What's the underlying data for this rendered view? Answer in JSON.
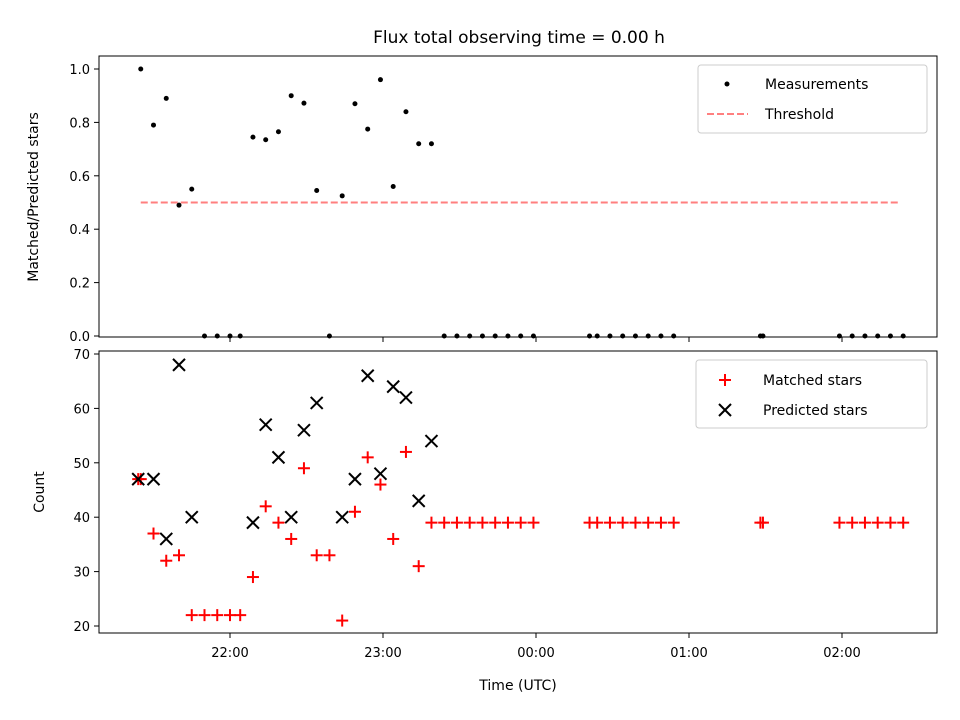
{
  "title": "Flux total observing time = 0.00 h",
  "chart_data": [
    {
      "type": "scatter",
      "ylabel": "Matched/Predicted stars",
      "xlabel": "",
      "ylim": [
        0,
        1.05
      ],
      "y_ticks": [
        "0.0",
        "0.2",
        "0.4",
        "0.6",
        "0.8",
        "1.0"
      ],
      "x_tick_labels_visible": false,
      "legend": {
        "placement": "upper right",
        "items": [
          "Measurements",
          "Threshold"
        ]
      },
      "colors": {
        "measurements": "#000000",
        "threshold": "#ff7f7f"
      },
      "threshold": {
        "name": "Threshold",
        "value": 0.5,
        "x_start": "21:25",
        "x_end": "02:23"
      },
      "series": [
        {
          "name": "Measurements",
          "points": [
            [
              "21:25",
              1.0
            ],
            [
              "21:30",
              0.79
            ],
            [
              "21:35",
              0.89
            ],
            [
              "21:40",
              0.49
            ],
            [
              "21:45",
              0.55
            ],
            [
              "21:50",
              0.0
            ],
            [
              "21:55",
              0.0
            ],
            [
              "22:00",
              0.0
            ],
            [
              "22:04",
              0.0
            ],
            [
              "22:09",
              0.745
            ],
            [
              "22:14",
              0.735
            ],
            [
              "22:19",
              0.765
            ],
            [
              "22:24",
              0.9
            ],
            [
              "22:29",
              0.872
            ],
            [
              "22:34",
              0.545
            ],
            [
              "22:39",
              0.0
            ],
            [
              "22:44",
              0.525
            ],
            [
              "22:49",
              0.87
            ],
            [
              "22:54",
              0.775
            ],
            [
              "22:59",
              0.96
            ],
            [
              "23:04",
              0.56
            ],
            [
              "23:09",
              0.84
            ],
            [
              "23:14",
              0.72
            ],
            [
              "23:19",
              0.72
            ],
            [
              "23:24",
              0.0
            ],
            [
              "23:29",
              0.0
            ],
            [
              "23:34",
              0.0
            ],
            [
              "23:39",
              0.0
            ],
            [
              "23:44",
              0.0
            ],
            [
              "23:49",
              0.0
            ],
            [
              "23:54",
              0.0
            ],
            [
              "23:59",
              0.0
            ],
            [
              "00:21",
              0.0
            ],
            [
              "00:24",
              0.0
            ],
            [
              "00:29",
              0.0
            ],
            [
              "00:34",
              0.0
            ],
            [
              "00:39",
              0.0
            ],
            [
              "00:44",
              0.0
            ],
            [
              "00:49",
              0.0
            ],
            [
              "00:54",
              0.0
            ],
            [
              "01:28",
              0.0
            ],
            [
              "01:29",
              0.0
            ],
            [
              "01:59",
              0.0
            ],
            [
              "02:04",
              0.0
            ],
            [
              "02:09",
              0.0
            ],
            [
              "02:14",
              0.0
            ],
            [
              "02:19",
              0.0
            ],
            [
              "02:24",
              0.0
            ]
          ]
        }
      ]
    },
    {
      "type": "scatter",
      "ylabel": "Count",
      "xlabel": "Time (UTC)",
      "ylim": [
        19,
        71
      ],
      "y_ticks": [
        "20",
        "30",
        "40",
        "50",
        "60",
        "70"
      ],
      "x_ticks": [
        "22:00",
        "23:00",
        "00:00",
        "01:00",
        "02:00"
      ],
      "legend": {
        "placement": "upper right",
        "items": [
          "Matched stars",
          "Predicted stars"
        ]
      },
      "colors": {
        "matched": "#ff0000",
        "predicted": "#000000"
      },
      "series": [
        {
          "name": "Matched stars",
          "marker": "plus",
          "points": [
            [
              "21:24",
              47
            ],
            [
              "21:25",
              47
            ],
            [
              "21:30",
              37
            ],
            [
              "21:35",
              32
            ],
            [
              "21:40",
              33
            ],
            [
              "21:45",
              22
            ],
            [
              "21:50",
              22
            ],
            [
              "21:55",
              22
            ],
            [
              "22:00",
              22
            ],
            [
              "22:04",
              22
            ],
            [
              "22:09",
              29
            ],
            [
              "22:14",
              42
            ],
            [
              "22:19",
              39
            ],
            [
              "22:24",
              36
            ],
            [
              "22:29",
              49
            ],
            [
              "22:34",
              33
            ],
            [
              "22:39",
              33
            ],
            [
              "22:44",
              21
            ],
            [
              "22:49",
              41
            ],
            [
              "22:54",
              51
            ],
            [
              "22:59",
              46
            ],
            [
              "23:04",
              36
            ],
            [
              "23:09",
              52
            ],
            [
              "23:14",
              31
            ],
            [
              "23:19",
              39
            ],
            [
              "23:24",
              39
            ],
            [
              "23:29",
              39
            ],
            [
              "23:34",
              39
            ],
            [
              "23:39",
              39
            ],
            [
              "23:44",
              39
            ],
            [
              "23:49",
              39
            ],
            [
              "23:54",
              39
            ],
            [
              "23:59",
              39
            ],
            [
              "00:21",
              39
            ],
            [
              "00:24",
              39
            ],
            [
              "00:29",
              39
            ],
            [
              "00:34",
              39
            ],
            [
              "00:39",
              39
            ],
            [
              "00:44",
              39
            ],
            [
              "00:49",
              39
            ],
            [
              "00:54",
              39
            ],
            [
              "01:28",
              39
            ],
            [
              "01:29",
              39
            ],
            [
              "01:59",
              39
            ],
            [
              "02:04",
              39
            ],
            [
              "02:09",
              39
            ],
            [
              "02:14",
              39
            ],
            [
              "02:19",
              39
            ],
            [
              "02:24",
              39
            ]
          ]
        },
        {
          "name": "Predicted stars",
          "marker": "x",
          "points": [
            [
              "21:24",
              47
            ],
            [
              "21:30",
              47
            ],
            [
              "21:35",
              36
            ],
            [
              "21:40",
              68
            ],
            [
              "21:45",
              40
            ],
            [
              "22:09",
              39
            ],
            [
              "22:14",
              57
            ],
            [
              "22:19",
              51
            ],
            [
              "22:24",
              40
            ],
            [
              "22:29",
              56
            ],
            [
              "22:34",
              61
            ],
            [
              "22:44",
              40
            ],
            [
              "22:49",
              47
            ],
            [
              "22:54",
              66
            ],
            [
              "22:59",
              48
            ],
            [
              "23:04",
              64
            ],
            [
              "23:09",
              62
            ],
            [
              "23:14",
              43
            ],
            [
              "23:19",
              54
            ]
          ]
        }
      ]
    }
  ]
}
